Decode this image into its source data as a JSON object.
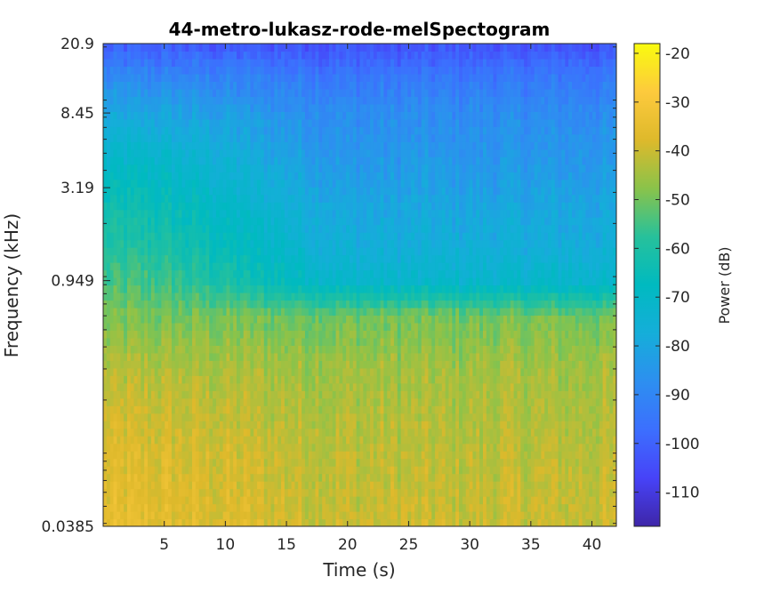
{
  "chart_data": {
    "type": "heatmap",
    "title": "44-metro-lukasz-rode-melSpectogram",
    "xlabel": "Time (s)",
    "ylabel": "Frequency (kHz)",
    "xlim": [
      0,
      42
    ],
    "x_ticks": [
      5,
      10,
      15,
      20,
      25,
      30,
      35,
      40
    ],
    "y_scale": "log",
    "ylim": [
      0.0385,
      20.9
    ],
    "y_ticks": [
      0.0385,
      0.949,
      3.19,
      8.45,
      20.9
    ],
    "y_tick_labels": [
      "0.0385",
      "0.949",
      "3.19",
      "8.45",
      "20.9"
    ],
    "colormap": "parula",
    "colorbar": {
      "label": "Power (dB)",
      "limits": [
        -117,
        -18
      ],
      "ticks": [
        -20,
        -30,
        -40,
        -50,
        -60,
        -70,
        -80,
        -90,
        -100,
        -110
      ]
    },
    "power_profile_db": {
      "frequency_khz": [
        0.0385,
        0.1,
        0.3,
        0.6,
        0.949,
        1.5,
        2.5,
        3.19,
        5,
        8.45,
        14,
        20.9
      ],
      "early_t0_5": [
        -36,
        -38,
        -43,
        -50,
        -55,
        -60,
        -64,
        -67,
        -72,
        -80,
        -90,
        -102
      ],
      "late_t20_42": [
        -40,
        -42,
        -45,
        -50,
        -72,
        -77,
        -80,
        -82,
        -85,
        -88,
        -95,
        -104
      ]
    },
    "grid": false
  }
}
